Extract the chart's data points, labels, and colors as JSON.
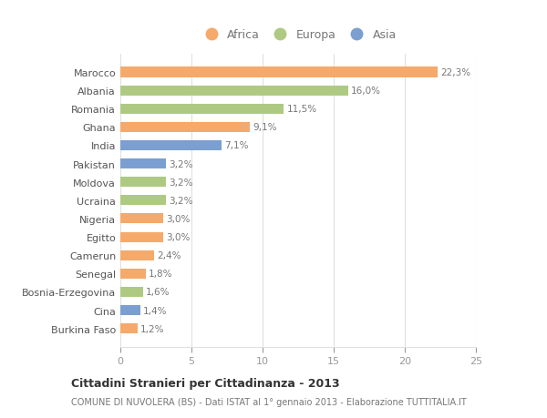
{
  "countries": [
    "Marocco",
    "Albania",
    "Romania",
    "Ghana",
    "India",
    "Pakistan",
    "Moldova",
    "Ucraina",
    "Nigeria",
    "Egitto",
    "Camerun",
    "Senegal",
    "Bosnia-Erzegovina",
    "Cina",
    "Burkina Faso"
  ],
  "values": [
    22.3,
    16.0,
    11.5,
    9.1,
    7.1,
    3.2,
    3.2,
    3.2,
    3.0,
    3.0,
    2.4,
    1.8,
    1.6,
    1.4,
    1.2
  ],
  "labels": [
    "22,3%",
    "16,0%",
    "11,5%",
    "9,1%",
    "7,1%",
    "3,2%",
    "3,2%",
    "3,2%",
    "3,0%",
    "3,0%",
    "2,4%",
    "1,8%",
    "1,6%",
    "1,4%",
    "1,2%"
  ],
  "continents": [
    "Africa",
    "Europa",
    "Europa",
    "Africa",
    "Asia",
    "Asia",
    "Europa",
    "Europa",
    "Africa",
    "Africa",
    "Africa",
    "Africa",
    "Europa",
    "Asia",
    "Africa"
  ],
  "colors": {
    "Africa": "#F5A96B",
    "Europa": "#AECA82",
    "Asia": "#7B9FD0"
  },
  "xlim": [
    0,
    25
  ],
  "xticks": [
    0,
    5,
    10,
    15,
    20,
    25
  ],
  "title": "Cittadini Stranieri per Cittadinanza - 2013",
  "subtitle": "COMUNE DI NUVOLERA (BS) - Dati ISTAT al 1° gennaio 2013 - Elaborazione TUTTITALIA.IT",
  "bg_color": "#FFFFFF",
  "bar_height": 0.55,
  "grid_color": "#E0E0E0",
  "label_color": "#777777",
  "ytick_color": "#555555"
}
